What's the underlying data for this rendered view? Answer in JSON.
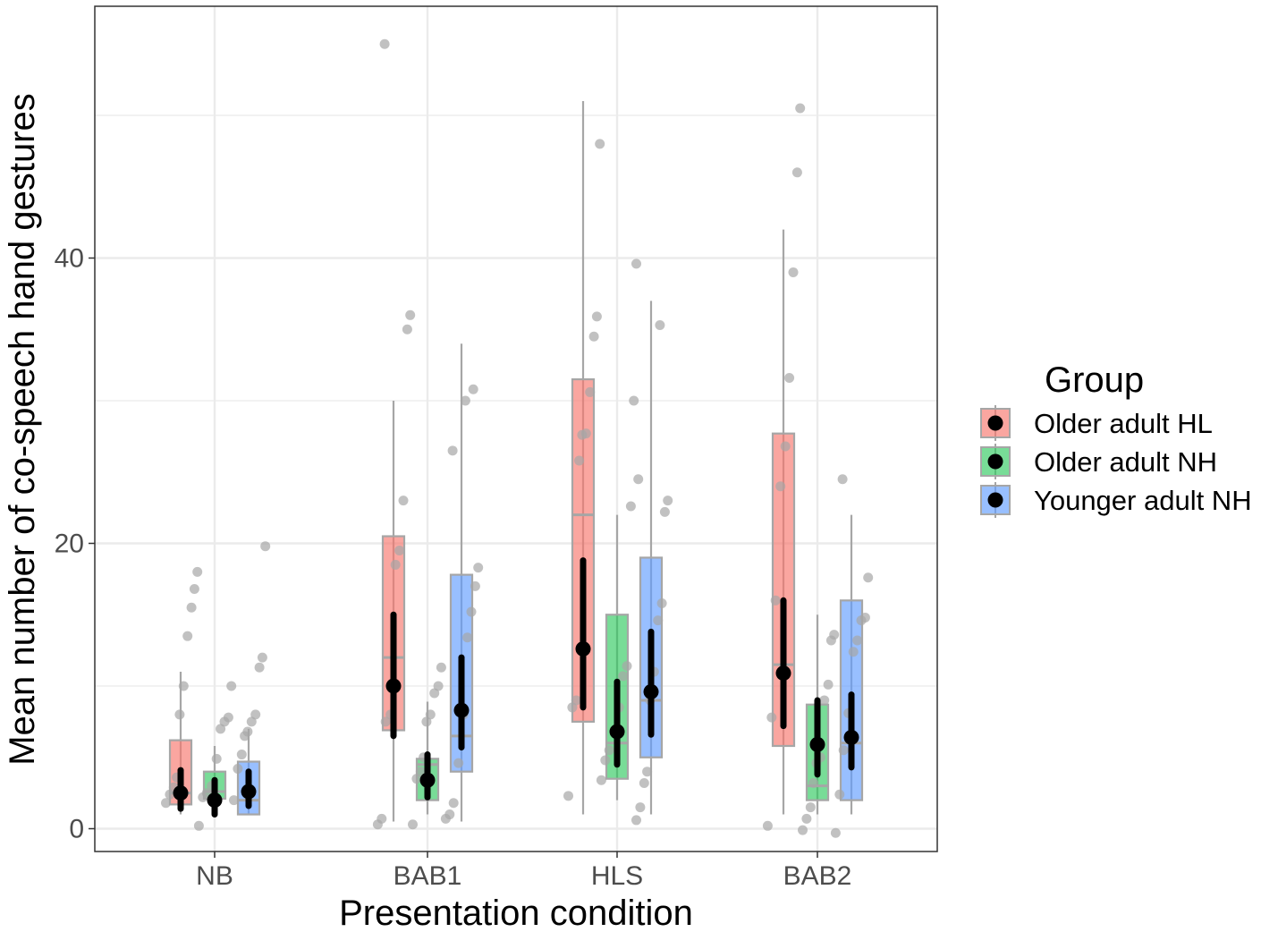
{
  "chart_data": {
    "type": "box",
    "title": "",
    "xlabel": "Presentation condition",
    "ylabel": "Mean number of co-speech hand gestures",
    "categories": [
      "NB",
      "BAB1",
      "HLS",
      "BAB2"
    ],
    "yticks": [
      0,
      20,
      40
    ],
    "yticks_labels": [
      "0",
      "20",
      "40"
    ],
    "ylim": [
      -1.5,
      57
    ],
    "grid": true,
    "legend": {
      "title": "Group",
      "position": "right",
      "entries": [
        "Older adult HL",
        "Older adult NH",
        "Younger adult NH"
      ]
    },
    "series": [
      {
        "name": "Older adult HL",
        "color": "#F8766D",
        "boxes": [
          {
            "q1": 1.7,
            "median": 2.5,
            "q3": 6.2,
            "wlow": 1.0,
            "whigh": 11.0,
            "mean": 2.5,
            "ci_low": 1.4,
            "ci_high": 4.1
          },
          {
            "q1": 6.9,
            "median": 12.0,
            "q3": 20.5,
            "wlow": 0.5,
            "whigh": 30.0,
            "mean": 10.0,
            "ci_low": 6.5,
            "ci_high": 15.0
          },
          {
            "q1": 7.5,
            "median": 22.0,
            "q3": 31.5,
            "wlow": 1.0,
            "whigh": 51.0,
            "mean": 12.6,
            "ci_low": 8.5,
            "ci_high": 18.8
          },
          {
            "q1": 5.8,
            "median": 11.5,
            "q3": 27.7,
            "wlow": 1.0,
            "whigh": 42.0,
            "mean": 10.9,
            "ci_low": 7.2,
            "ci_high": 16.0
          }
        ],
        "points": [
          [
            1.8,
            2.4,
            2.9,
            3.6,
            8.0,
            10.0,
            13.5,
            15.5,
            16.8,
            18.0
          ],
          [
            0.3,
            0.7,
            7.5,
            8.0,
            18.5,
            19.5,
            23.0,
            35.0,
            36.0,
            55.0
          ],
          [
            2.3,
            8.5,
            9.0,
            25.8,
            27.6,
            27.7,
            30.6,
            34.5,
            35.9,
            48.0
          ],
          [
            0.2,
            7.8,
            16.0,
            24.0,
            26.8,
            31.6,
            39.0,
            46.0,
            50.5
          ]
        ]
      },
      {
        "name": "Older adult NH",
        "color": "#2FCA5F",
        "boxes": [
          {
            "q1": 2.1,
            "median": 2.6,
            "q3": 4.0,
            "wlow": 1.0,
            "whigh": 5.8,
            "mean": 2.0,
            "ci_low": 1.0,
            "ci_high": 3.4
          },
          {
            "q1": 2.0,
            "median": 4.5,
            "q3": 4.9,
            "wlow": 1.0,
            "whigh": 8.9,
            "mean": 3.4,
            "ci_low": 2.2,
            "ci_high": 5.2
          },
          {
            "q1": 3.5,
            "median": 6.0,
            "q3": 15.0,
            "wlow": 2.0,
            "whigh": 22.0,
            "mean": 6.8,
            "ci_low": 4.5,
            "ci_high": 10.3
          },
          {
            "q1": 2.0,
            "median": 3.0,
            "q3": 8.7,
            "wlow": 1.0,
            "whigh": 15.0,
            "mean": 5.9,
            "ci_low": 3.8,
            "ci_high": 9.0
          }
        ],
        "points": [
          [
            0.2,
            2.2,
            2.5,
            3.0,
            4.9,
            7.0,
            7.5,
            7.8,
            10.0
          ],
          [
            0.3,
            3.5,
            4.0,
            5.0,
            7.5,
            8.0,
            9.5,
            10.0,
            11.3
          ],
          [
            3.4,
            4.8,
            5.5,
            6.8,
            8.5,
            10.7,
            11.4,
            22.6,
            30.0
          ],
          [
            -0.1,
            0.7,
            1.5,
            3.2,
            4.6,
            5.0,
            9.0,
            10.1,
            13.2,
            13.6
          ]
        ]
      },
      {
        "name": "Younger adult NH",
        "color": "#619CFF",
        "boxes": [
          {
            "q1": 1.0,
            "median": 2.0,
            "q3": 4.7,
            "wlow": 1.0,
            "whigh": 7.0,
            "mean": 2.6,
            "ci_low": 1.6,
            "ci_high": 4.0
          },
          {
            "q1": 4.0,
            "median": 6.5,
            "q3": 17.8,
            "wlow": 0.5,
            "whigh": 34.0,
            "mean": 8.3,
            "ci_low": 5.7,
            "ci_high": 12.0
          },
          {
            "q1": 5.0,
            "median": 9.0,
            "q3": 19.0,
            "wlow": 1.0,
            "whigh": 37.0,
            "mean": 9.6,
            "ci_low": 6.6,
            "ci_high": 13.8
          },
          {
            "q1": 2.0,
            "median": 6.0,
            "q3": 16.0,
            "wlow": 1.0,
            "whigh": 22.0,
            "mean": 6.4,
            "ci_low": 4.3,
            "ci_high": 9.4
          }
        ],
        "points": [
          [
            2.0,
            4.2,
            5.2,
            6.5,
            6.8,
            7.5,
            8.0,
            11.3,
            12.0,
            19.8
          ],
          [
            0.7,
            1.0,
            1.8,
            4.6,
            8.0,
            13.4,
            15.2,
            17.0,
            18.3,
            26.5,
            30.0,
            30.8
          ],
          [
            0.6,
            1.5,
            3.2,
            4.0,
            9.0,
            11.0,
            14.6,
            15.8,
            22.2,
            23.0,
            24.5,
            35.3,
            39.6
          ],
          [
            -0.3,
            2.4,
            5.5,
            8.1,
            12.4,
            13.2,
            14.6,
            14.8,
            17.6,
            24.5
          ]
        ]
      }
    ]
  }
}
